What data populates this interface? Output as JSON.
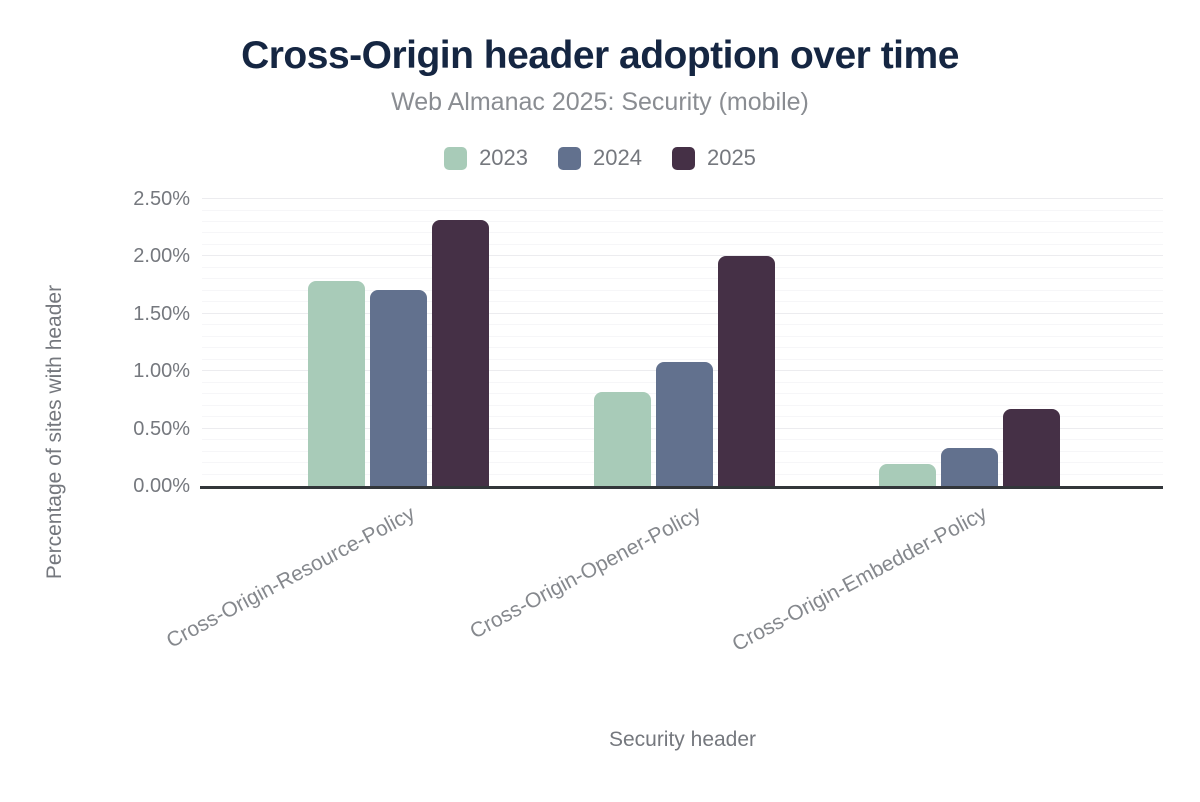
{
  "page": {
    "background": "#ffffff"
  },
  "chart_data": {
    "type": "bar",
    "title": "Cross-Origin header adoption over time",
    "subtitle": "Web Almanac 2025: Security (mobile)",
    "categories": [
      "Cross-Origin-Resource-Policy",
      "Cross-Origin-Opener-Policy",
      "Cross-Origin-Embedder-Policy"
    ],
    "series": [
      {
        "name": "2023",
        "color": "#a8cbb8",
        "values": [
          1.79,
          0.82,
          0.19
        ]
      },
      {
        "name": "2024",
        "color": "#62718e",
        "values": [
          1.71,
          1.08,
          0.33
        ]
      },
      {
        "name": "2025",
        "color": "#453046",
        "values": [
          2.32,
          2.0,
          0.67
        ]
      }
    ],
    "xlabel": "Security header",
    "ylabel": "Percentage of sites with header",
    "ylim": [
      0,
      2.5
    ],
    "ytick_step": 0.5,
    "yticks": [
      "0.00%",
      "0.50%",
      "1.00%",
      "1.50%",
      "2.00%",
      "2.50%"
    ],
    "minor_gridline_step": 0.1,
    "grid": true,
    "legend_position": "top",
    "colors": {
      "title": "#152642",
      "subtitle_text": "#8a8d92",
      "axis_text": "#75787e",
      "category_text": "#85888d",
      "axis_line": "#32363a",
      "gridline_major": "#ececef",
      "gridline_minor": "#f6f6f8"
    }
  }
}
